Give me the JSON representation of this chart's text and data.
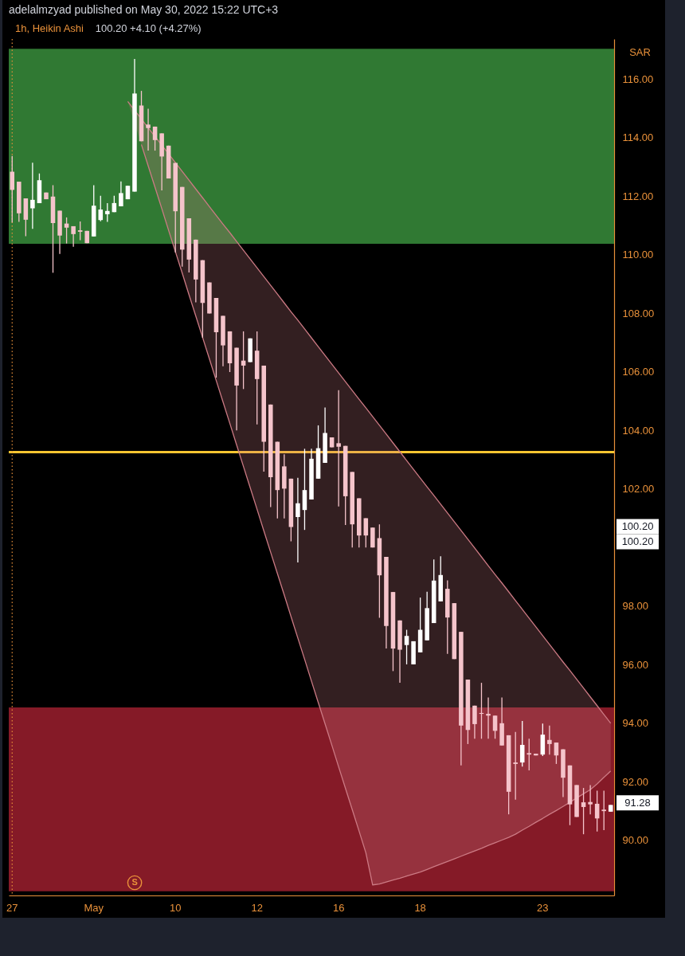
{
  "chart_data": {
    "type": "candlestick",
    "title": "1h, Heikin Ashi",
    "subtitle": "100.20 +4.10 (+4.27%)",
    "ylabel": "SAR",
    "categories": [
      "27",
      null,
      null,
      null,
      null,
      null,
      null,
      null,
      null,
      null,
      null,
      null,
      "May",
      null,
      null,
      null,
      null,
      null,
      null,
      null,
      null,
      null,
      null,
      null,
      "10",
      null,
      null,
      null,
      null,
      null,
      null,
      null,
      null,
      null,
      null,
      null,
      "12",
      null,
      null,
      null,
      null,
      null,
      null,
      null,
      null,
      null,
      null,
      null,
      "16",
      null,
      null,
      null,
      null,
      null,
      null,
      null,
      null,
      null,
      null,
      null,
      "18",
      null,
      null,
      null,
      null,
      null,
      null,
      null,
      null,
      null,
      null,
      null,
      null,
      null,
      null,
      null,
      null,
      null,
      "23",
      null,
      null,
      null,
      null,
      null,
      null,
      null,
      null,
      null,
      null
    ],
    "ohlc": [
      [
        112.83,
        113.37,
        111.1,
        112.21
      ],
      [
        112.49,
        112.49,
        111.12,
        111.41
      ],
      [
        111.92,
        111.92,
        110.63,
        111.19
      ],
      [
        111.58,
        113.14,
        110.88,
        111.87
      ],
      [
        111.76,
        112.77,
        111.76,
        112.54
      ],
      [
        112.12,
        112.12,
        111.89,
        111.89
      ],
      [
        111.98,
        112.37,
        109.38,
        111.08
      ],
      [
        111.5,
        111.5,
        110.02,
        110.65
      ],
      [
        111.06,
        111.27,
        110.38,
        110.92
      ],
      [
        110.97,
        110.97,
        110.27,
        110.7
      ],
      [
        110.83,
        111.13,
        110.49,
        110.78
      ],
      [
        110.81,
        110.81,
        110.39,
        110.39
      ],
      [
        110.62,
        112.37,
        110.62,
        111.67
      ],
      [
        111.18,
        112.01,
        111.14,
        111.54
      ],
      [
        111.38,
        111.76,
        111.12,
        111.49
      ],
      [
        111.45,
        112.01,
        111.45,
        111.76
      ],
      [
        111.65,
        112.5,
        111.65,
        112.1
      ],
      [
        111.89,
        112.35,
        111.89,
        112.35
      ],
      [
        112.15,
        116.68,
        112.15,
        115.5
      ],
      [
        115.09,
        115.59,
        113.87,
        113.87
      ],
      [
        114.44,
        114.98,
        113.55,
        114.32
      ],
      [
        114.37,
        114.37,
        113.55,
        113.91
      ],
      [
        114.14,
        114.14,
        112.19,
        113.35
      ],
      [
        113.72,
        113.72,
        112.6,
        112.6
      ],
      [
        113.13,
        113.13,
        110.07,
        111.48
      ],
      [
        112.31,
        112.31,
        109.59,
        110.17
      ],
      [
        111.24,
        111.24,
        109.39,
        109.83
      ],
      [
        110.51,
        110.51,
        108.37,
        109.15
      ],
      [
        109.81,
        109.81,
        107.16,
        108.35
      ],
      [
        109.05,
        109.05,
        107.99,
        107.99
      ],
      [
        108.52,
        108.52,
        105.8,
        107.35
      ],
      [
        107.91,
        107.91,
        106.19,
        106.9
      ],
      [
        107.38,
        107.38,
        105.99,
        106.29
      ],
      [
        106.82,
        106.82,
        104.0,
        105.53
      ],
      [
        106.38,
        107.38,
        105.41,
        106.21
      ],
      [
        106.33,
        107.14,
        106.33,
        107.14
      ],
      [
        106.72,
        107.38,
        104.2,
        105.75
      ],
      [
        106.21,
        106.21,
        102.59,
        103.61
      ],
      [
        104.88,
        104.88,
        101.38,
        102.4
      ],
      [
        103.61,
        103.61,
        100.99,
        101.96
      ],
      [
        102.77,
        103.18,
        100.99,
        102.01
      ],
      [
        102.35,
        102.35,
        100.21,
        100.7
      ],
      [
        101.04,
        102.38,
        99.49,
        101.51
      ],
      [
        101.28,
        103.37,
        100.6,
        101.96
      ],
      [
        101.64,
        103.37,
        101.64,
        103.03
      ],
      [
        102.35,
        104.17,
        102.35,
        103.39
      ],
      [
        102.89,
        104.78,
        102.89,
        103.91
      ],
      [
        103.76,
        103.76,
        103.42,
        103.42
      ],
      [
        103.56,
        105.37,
        101.4,
        103.44
      ],
      [
        103.47,
        103.47,
        100.77,
        101.75
      ],
      [
        102.58,
        102.58,
        100.0,
        100.79
      ],
      [
        101.68,
        101.68,
        100.0,
        100.41
      ],
      [
        101.0,
        101.0,
        100.0,
        100.41
      ],
      [
        100.68,
        100.68,
        100.0,
        100.0
      ],
      [
        100.32,
        100.79,
        97.6,
        99.05
      ],
      [
        99.68,
        99.68,
        96.55,
        97.32
      ],
      [
        98.48,
        98.48,
        95.78,
        96.55
      ],
      [
        97.51,
        97.51,
        95.38,
        96.51
      ],
      [
        96.67,
        97.19,
        96.01,
        96.98
      ],
      [
        96.01,
        96.8,
        96.01,
        96.8
      ],
      [
        96.42,
        98.29,
        96.42,
        97.19
      ],
      [
        96.83,
        98.49,
        96.83,
        97.93
      ],
      [
        97.42,
        99.59,
        97.42,
        98.87
      ],
      [
        98.16,
        99.7,
        98.16,
        99.06
      ],
      [
        98.59,
        98.88,
        96.37,
        97.61
      ],
      [
        98.1,
        98.1,
        96.19,
        96.19
      ],
      [
        97.12,
        97.12,
        92.56,
        93.92
      ],
      [
        95.49,
        95.49,
        93.29,
        93.77
      ],
      [
        94.6,
        94.6,
        93.47,
        93.97
      ],
      [
        94.35,
        95.38,
        93.47,
        94.32
      ],
      [
        94.32,
        94.88,
        93.47,
        94.26
      ],
      [
        94.26,
        94.26,
        93.47,
        93.74
      ],
      [
        94.0,
        94.88,
        93.24,
        93.24
      ],
      [
        93.59,
        93.59,
        90.89,
        91.66
      ],
      [
        92.66,
        93.7,
        91.39,
        92.61
      ],
      [
        92.66,
        94.08,
        92.52,
        93.26
      ],
      [
        92.98,
        93.47,
        92.39,
        92.93
      ],
      [
        92.96,
        92.96,
        92.9,
        92.9
      ],
      [
        92.93,
        93.99,
        92.88,
        93.61
      ],
      [
        93.43,
        93.92,
        92.93,
        93.29
      ],
      [
        93.34,
        93.34,
        92.61,
        92.9
      ],
      [
        93.11,
        93.11,
        91.48,
        92.14
      ],
      [
        92.56,
        92.56,
        90.52,
        91.23
      ],
      [
        91.89,
        91.89,
        90.8,
        90.8
      ],
      [
        91.3,
        91.79,
        90.21,
        91.14
      ],
      [
        91.31,
        91.89,
        90.89,
        91.23
      ],
      [
        91.25,
        91.7,
        90.3,
        90.75
      ],
      [
        91.05,
        91.7,
        90.35,
        91.0
      ],
      [
        90.98,
        91.21,
        90.98,
        91.21
      ]
    ],
    "colors": [
      "#f5c4cb",
      "#f5c4cb",
      "#f5c4cb",
      "#ffffff",
      "#ffffff",
      "#f5c4cb",
      "#f5c4cb",
      "#f5c4cb",
      "#f5c4cb",
      "#f5c4cb",
      "#f5c4cb",
      "#f5c4cb",
      "#ffffff",
      "#ffffff",
      "#ffffff",
      "#ffffff",
      "#ffffff",
      "#ffffff",
      "#ffffff",
      "#f5c4cb",
      "#f5c4cb",
      "#f5c4cb",
      "#f5c4cb",
      "#f5c4cb",
      "#f5c4cb",
      "#f5c4cb",
      "#f5c4cb",
      "#f5c4cb",
      "#f5c4cb",
      "#f5c4cb",
      "#f5c4cb",
      "#f5c4cb",
      "#f5c4cb",
      "#f5c4cb",
      "#f5c4cb",
      "#ffffff",
      "#f5c4cb",
      "#f5c4cb",
      "#f5c4cb",
      "#f5c4cb",
      "#f5c4cb",
      "#f5c4cb",
      "#ffffff",
      "#ffffff",
      "#ffffff",
      "#ffffff",
      "#ffffff",
      "#f5c4cb",
      "#f5c4cb",
      "#f5c4cb",
      "#f5c4cb",
      "#f5c4cb",
      "#f5c4cb",
      "#f5c4cb",
      "#f5c4cb",
      "#f5c4cb",
      "#f5c4cb",
      "#f5c4cb",
      "#ffffff",
      "#ffffff",
      "#ffffff",
      "#ffffff",
      "#ffffff",
      "#ffffff",
      "#f5c4cb",
      "#f5c4cb",
      "#f5c4cb",
      "#f5c4cb",
      "#f5c4cb",
      "#f5c4cb",
      "#f5c4cb",
      "#f5c4cb",
      "#f5c4cb",
      "#f5c4cb",
      "#f5c4cb",
      "#ffffff",
      "#f5c4cb",
      "#f5c4cb",
      "#ffffff",
      "#f5c4cb",
      "#f5c4cb",
      "#f5c4cb",
      "#f5c4cb",
      "#f5c4cb",
      "#f5c4cb",
      "#f5c4cb",
      "#f5c4cb",
      "#f5c4cb",
      "#ffffff"
    ],
    "series": [
      {
        "type": "line",
        "color": "#cc7a84",
        "values": [
          null,
          null,
          null,
          null,
          null,
          null,
          null,
          null,
          null,
          null,
          null,
          null,
          null,
          null,
          null,
          null,
          null,
          115.23,
          114.93,
          114.63,
          114.33,
          114.03,
          113.74,
          113.44,
          113.14,
          112.84,
          112.54,
          112.24,
          111.94,
          111.64,
          111.34,
          111.04,
          110.75,
          110.45,
          110.15,
          109.85,
          109.55,
          109.25,
          108.95,
          108.65,
          108.35,
          108.05,
          107.76,
          107.46,
          107.16,
          106.86,
          106.56,
          106.26,
          105.96,
          105.66,
          105.36,
          105.06,
          104.77,
          104.47,
          104.17,
          103.87,
          103.57,
          103.27,
          102.97,
          102.67,
          102.37,
          102.07,
          101.78,
          101.48,
          101.18,
          100.88,
          100.58,
          100.28,
          99.98,
          99.68,
          99.38,
          99.08,
          98.79,
          98.49,
          98.19,
          97.89,
          97.59,
          97.29,
          96.99,
          96.69,
          96.39,
          96.09,
          95.8,
          95.5,
          95.2,
          94.9,
          94.6,
          94.3,
          94.0
        ],
        "lower": [
          null,
          null,
          null,
          null,
          null,
          null,
          null,
          null,
          null,
          null,
          null,
          null,
          null,
          null,
          null,
          null,
          null,
          115.23,
          114.5,
          113.76,
          113.03,
          112.3,
          111.57,
          110.83,
          110.1,
          109.37,
          108.63,
          107.9,
          107.17,
          106.44,
          105.7,
          104.97,
          104.24,
          103.5,
          102.77,
          102.04,
          101.31,
          100.57,
          99.84,
          99.11,
          98.38,
          97.64,
          96.91,
          96.18,
          95.44,
          94.71,
          93.98,
          93.25,
          92.51,
          91.78,
          91.05,
          90.32,
          89.58,
          88.48,
          88.51,
          88.58,
          88.65,
          88.71,
          88.78,
          88.85,
          88.92,
          89.01,
          89.1,
          89.19,
          89.28,
          89.37,
          89.46,
          89.55,
          89.64,
          89.73,
          89.83,
          89.92,
          90.01,
          90.1,
          90.21,
          90.35,
          90.48,
          90.62,
          90.75,
          90.89,
          91.02,
          91.16,
          91.3,
          91.45,
          91.59,
          91.73,
          91.93,
          92.15,
          92.37
        ],
        "upper": [
          null,
          null,
          null,
          null,
          null,
          null,
          null,
          null,
          null,
          null,
          null,
          null,
          null,
          null,
          null,
          null,
          null,
          115.23,
          114.93,
          114.63,
          114.33,
          114.03,
          113.74,
          113.44,
          113.14,
          112.84,
          112.54,
          112.24,
          111.94,
          111.64,
          111.34,
          111.04,
          110.75,
          110.45,
          110.15,
          109.85,
          109.55,
          109.25,
          108.95,
          108.65,
          108.35,
          108.05,
          107.76,
          107.46,
          107.16,
          106.86,
          106.56,
          106.26,
          105.96,
          105.66,
          105.36,
          105.06,
          104.77,
          104.47,
          104.17,
          103.87,
          103.57,
          103.27,
          102.97,
          102.67,
          102.37,
          102.07,
          101.78,
          101.48,
          101.18,
          100.88,
          100.58,
          100.28,
          99.98,
          99.68,
          99.38,
          99.08,
          98.79,
          98.49,
          98.19,
          97.89,
          97.59,
          97.29,
          96.99,
          96.69,
          96.39,
          96.09,
          95.8,
          95.5,
          95.2,
          94.9,
          94.6,
          94.3,
          94.0
        ]
      },
      {
        "type": "line",
        "color": "#cc7a84",
        "values": [
          null,
          null,
          null,
          null,
          null,
          null,
          null,
          null,
          null,
          null,
          null,
          null,
          null,
          null,
          null,
          null,
          null,
          null,
          null,
          113.76,
          113.03,
          112.3,
          111.57,
          110.83,
          110.1,
          109.37,
          108.63,
          107.9,
          107.17,
          106.44,
          105.7,
          104.97,
          104.24,
          103.5,
          102.77,
          102.04,
          101.31,
          100.57,
          99.84,
          99.11,
          98.38,
          97.64,
          96.91,
          96.18,
          95.44,
          94.71,
          93.98,
          93.25,
          92.51,
          91.78,
          91.05,
          90.32,
          89.58,
          88.48,
          88.51,
          88.58,
          88.65,
          88.71,
          88.78,
          88.85,
          88.92,
          89.01,
          89.1,
          89.19,
          89.28,
          89.37,
          89.46,
          89.55,
          89.64,
          89.73,
          89.83,
          89.92,
          90.01,
          90.1,
          90.21,
          90.35,
          90.48,
          90.62,
          90.75,
          90.89,
          91.02,
          91.16,
          91.3,
          91.45,
          91.59,
          91.73,
          91.93,
          92.15,
          92.37
        ]
      }
    ],
    "ref_lines": [
      {
        "axis": "y",
        "value": 103.26,
        "color": "#f7c531"
      },
      {
        "axis": "x",
        "value": "27",
        "color": "#e9913a",
        "line_style": "dotted"
      }
    ],
    "bands": [
      {
        "axis": "y",
        "from": 110.37,
        "to": 117.03,
        "color": "#388e3c"
      },
      {
        "axis": "y",
        "from": 88.26,
        "to": 94.54,
        "color": "#9c1f2e"
      }
    ],
    "ylim": [
      88.12,
      117.36
    ],
    "yticks": [
      {
        "value": 90,
        "label": "90.00"
      },
      {
        "value": 92,
        "label": "92.00"
      },
      {
        "value": 94,
        "label": "94.00"
      },
      {
        "value": 96,
        "label": "96.00"
      },
      {
        "value": 98,
        "label": "98.00"
      },
      {
        "value": 102,
        "label": "102.00"
      },
      {
        "value": 104,
        "label": "104.00"
      },
      {
        "value": 106,
        "label": "106.00"
      },
      {
        "value": 108,
        "label": "108.00"
      },
      {
        "value": 110,
        "label": "110.00"
      },
      {
        "value": 112,
        "label": "112.00"
      },
      {
        "value": 114,
        "label": "114.00"
      },
      {
        "value": 116,
        "label": "116.00"
      }
    ],
    "annotations": [
      "adelalmzyad published on May 30, 2022 15:22 UTC+3",
      "100.20",
      "100.20",
      "91.28",
      "S"
    ]
  }
}
